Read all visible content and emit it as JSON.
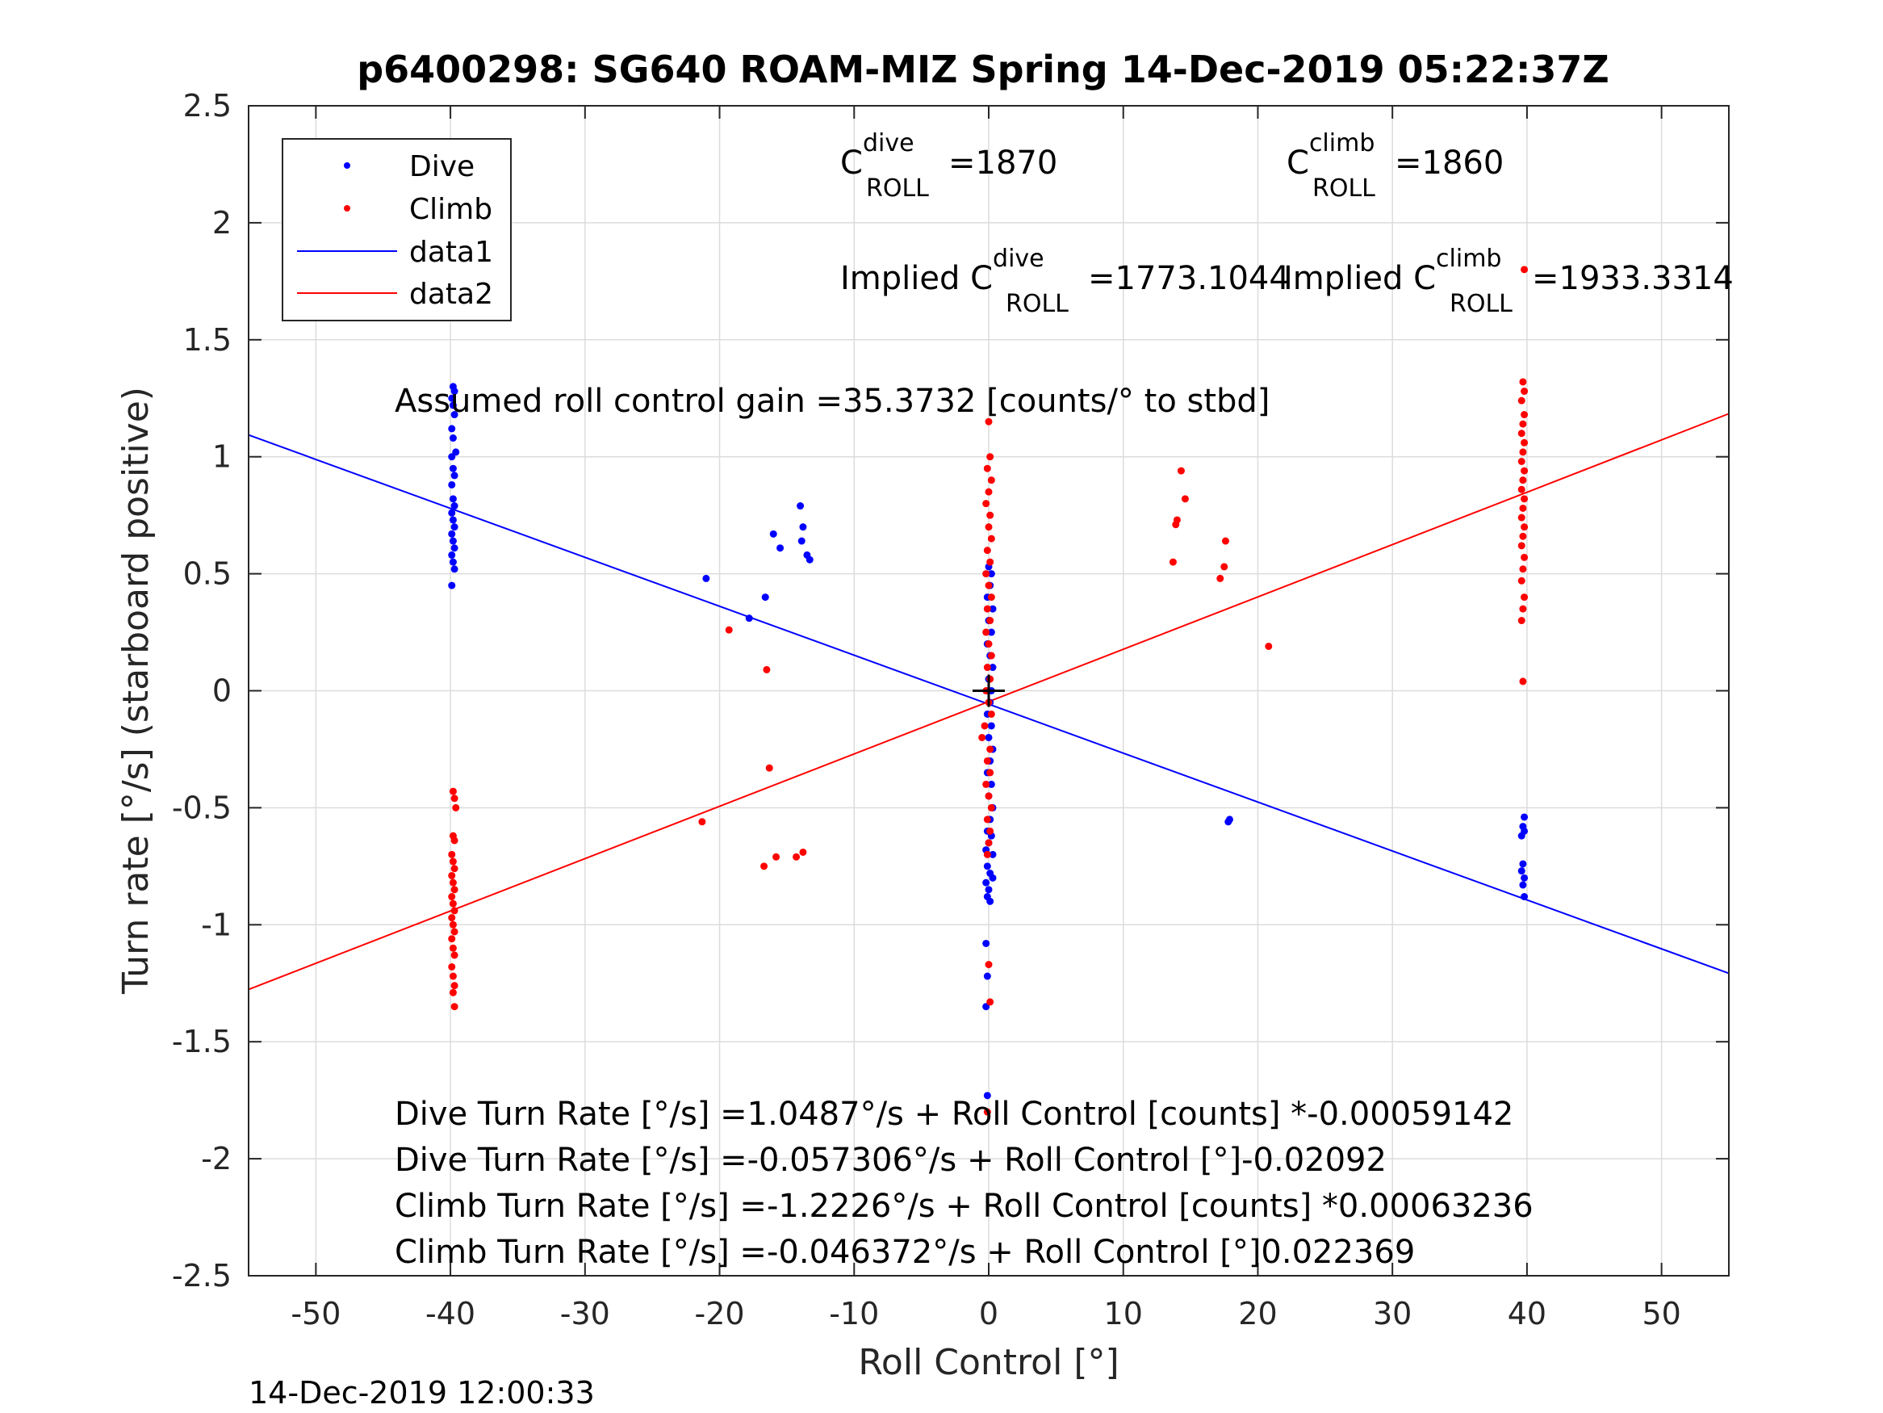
{
  "chart_data": {
    "type": "scatter",
    "title": "p6400298: SG640 ROAM-MIZ Spring 14-Dec-2019 05:22:37Z",
    "xlabel": "Roll Control [°]",
    "ylabel": "Turn rate [°/s] (starboard positive)",
    "xlim": [
      -55,
      55
    ],
    "ylim": [
      -2.5,
      2.5
    ],
    "xticks": [
      -50,
      -40,
      -30,
      -20,
      -10,
      0,
      10,
      20,
      30,
      40,
      50
    ],
    "yticks": [
      -2.5,
      -2,
      -1.5,
      -1,
      -0.5,
      0,
      0.5,
      1,
      1.5,
      2,
      2.5
    ],
    "xtick_labels": [
      "-50",
      "-40",
      "-30",
      "-20",
      "-10",
      "0",
      "10",
      "20",
      "30",
      "40",
      "50"
    ],
    "ytick_labels": [
      "-2.5",
      "-2",
      "-1.5",
      "-1",
      "-0.5",
      "0",
      "0.5",
      "1",
      "1.5",
      "2",
      "2.5"
    ],
    "grid": true,
    "legend_position": "top-left",
    "legend": [
      "Dive",
      "Climb",
      "data1",
      "data2"
    ],
    "colors": {
      "dive": "#0000ff",
      "climb": "#ff0000",
      "marker": "#000000"
    },
    "series": [
      {
        "name": "Dive",
        "style": "points",
        "points": [
          [
            -39.8,
            1.3
          ],
          [
            -39.7,
            1.28
          ],
          [
            -39.9,
            1.25
          ],
          [
            -39.8,
            1.22
          ],
          [
            -39.7,
            1.18
          ],
          [
            -39.9,
            1.12
          ],
          [
            -39.8,
            1.08
          ],
          [
            -39.6,
            1.02
          ],
          [
            -39.9,
            1.0
          ],
          [
            -39.8,
            0.95
          ],
          [
            -39.7,
            0.92
          ],
          [
            -39.9,
            0.88
          ],
          [
            -39.8,
            0.82
          ],
          [
            -39.7,
            0.79
          ],
          [
            -39.9,
            0.76
          ],
          [
            -39.8,
            0.73
          ],
          [
            -39.7,
            0.7
          ],
          [
            -39.9,
            0.67
          ],
          [
            -39.8,
            0.64
          ],
          [
            -39.7,
            0.61
          ],
          [
            -39.9,
            0.58
          ],
          [
            -39.8,
            0.55
          ],
          [
            -39.7,
            0.52
          ],
          [
            -39.9,
            0.45
          ],
          [
            -21.0,
            0.48
          ],
          [
            -17.8,
            0.31
          ],
          [
            -16.6,
            0.4
          ],
          [
            -16.0,
            0.67
          ],
          [
            -15.5,
            0.61
          ],
          [
            -14.0,
            0.79
          ],
          [
            -13.8,
            0.7
          ],
          [
            -13.9,
            0.64
          ],
          [
            -13.5,
            0.58
          ],
          [
            -13.3,
            0.56
          ],
          [
            0.0,
            0.53
          ],
          [
            0.2,
            0.5
          ],
          [
            0.1,
            0.45
          ],
          [
            -0.1,
            0.4
          ],
          [
            0.3,
            0.35
          ],
          [
            0.0,
            0.3
          ],
          [
            0.2,
            0.25
          ],
          [
            -0.1,
            0.2
          ],
          [
            0.1,
            0.15
          ],
          [
            0.3,
            0.1
          ],
          [
            0.0,
            0.05
          ],
          [
            0.2,
            0.0
          ],
          [
            0.1,
            -0.05
          ],
          [
            -0.1,
            -0.1
          ],
          [
            0.2,
            -0.15
          ],
          [
            0.0,
            -0.2
          ],
          [
            0.3,
            -0.25
          ],
          [
            0.1,
            -0.3
          ],
          [
            -0.1,
            -0.35
          ],
          [
            0.2,
            -0.4
          ],
          [
            0.0,
            -0.45
          ],
          [
            0.3,
            -0.5
          ],
          [
            0.1,
            -0.55
          ],
          [
            -0.1,
            -0.6
          ],
          [
            0.2,
            -0.62
          ],
          [
            0.0,
            -0.65
          ],
          [
            -0.2,
            -0.68
          ],
          [
            0.3,
            -0.7
          ],
          [
            -0.1,
            -0.75
          ],
          [
            0.1,
            -0.78
          ],
          [
            0.3,
            -0.8
          ],
          [
            -0.2,
            -0.82
          ],
          [
            0.0,
            -0.85
          ],
          [
            -0.1,
            -0.88
          ],
          [
            0.1,
            -0.9
          ],
          [
            -0.2,
            -1.08
          ],
          [
            -0.1,
            -1.22
          ],
          [
            -0.2,
            -1.35
          ],
          [
            -0.1,
            -1.73
          ],
          [
            17.8,
            -0.56
          ],
          [
            17.9,
            -0.55
          ],
          [
            39.8,
            -0.54
          ],
          [
            39.7,
            -0.58
          ],
          [
            39.6,
            -0.62
          ],
          [
            39.8,
            -0.6
          ],
          [
            39.7,
            -0.74
          ],
          [
            39.6,
            -0.77
          ],
          [
            39.8,
            -0.8
          ],
          [
            39.7,
            -0.83
          ],
          [
            39.8,
            -0.88
          ]
        ]
      },
      {
        "name": "Climb",
        "style": "points",
        "points": [
          [
            -39.8,
            -0.43
          ],
          [
            -39.7,
            -0.46
          ],
          [
            -39.6,
            -0.5
          ],
          [
            -39.8,
            -0.62
          ],
          [
            -39.7,
            -0.64
          ],
          [
            -39.9,
            -0.7
          ],
          [
            -39.8,
            -0.73
          ],
          [
            -39.7,
            -0.76
          ],
          [
            -39.9,
            -0.79
          ],
          [
            -39.8,
            -0.82
          ],
          [
            -39.7,
            -0.85
          ],
          [
            -39.9,
            -0.88
          ],
          [
            -39.8,
            -0.91
          ],
          [
            -39.7,
            -0.94
          ],
          [
            -39.9,
            -0.97
          ],
          [
            -39.8,
            -1.0
          ],
          [
            -39.7,
            -1.03
          ],
          [
            -39.9,
            -1.06
          ],
          [
            -39.8,
            -1.1
          ],
          [
            -39.7,
            -1.13
          ],
          [
            -39.9,
            -1.18
          ],
          [
            -39.8,
            -1.22
          ],
          [
            -39.7,
            -1.26
          ],
          [
            -39.8,
            -1.29
          ],
          [
            -39.7,
            -1.35
          ],
          [
            -21.3,
            -0.56
          ],
          [
            -19.3,
            0.26
          ],
          [
            -16.5,
            0.09
          ],
          [
            -16.3,
            -0.33
          ],
          [
            -16.7,
            -0.75
          ],
          [
            -15.8,
            -0.71
          ],
          [
            -14.3,
            -0.71
          ],
          [
            -13.8,
            -0.69
          ],
          [
            0.0,
            1.15
          ],
          [
            0.1,
            1.0
          ],
          [
            -0.1,
            0.95
          ],
          [
            0.2,
            0.9
          ],
          [
            0.0,
            0.85
          ],
          [
            -0.2,
            0.8
          ],
          [
            0.1,
            0.75
          ],
          [
            0.0,
            0.7
          ],
          [
            0.2,
            0.65
          ],
          [
            -0.1,
            0.6
          ],
          [
            0.1,
            0.55
          ],
          [
            -0.2,
            0.5
          ],
          [
            0.0,
            0.45
          ],
          [
            0.2,
            0.4
          ],
          [
            -0.1,
            0.35
          ],
          [
            0.1,
            0.3
          ],
          [
            -0.2,
            0.25
          ],
          [
            0.0,
            0.2
          ],
          [
            0.2,
            0.15
          ],
          [
            -0.1,
            0.1
          ],
          [
            0.1,
            0.05
          ],
          [
            -0.2,
            0.0
          ],
          [
            0.0,
            -0.05
          ],
          [
            0.2,
            -0.1
          ],
          [
            -0.3,
            -0.15
          ],
          [
            -0.5,
            -0.2
          ],
          [
            0.1,
            -0.25
          ],
          [
            -0.1,
            -0.3
          ],
          [
            0.1,
            -0.35
          ],
          [
            -0.2,
            -0.4
          ],
          [
            0.0,
            -0.45
          ],
          [
            0.2,
            -0.5
          ],
          [
            -0.1,
            -0.55
          ],
          [
            0.1,
            -0.6
          ],
          [
            0.0,
            -0.65
          ],
          [
            -0.1,
            -0.7
          ],
          [
            0.0,
            -1.17
          ],
          [
            0.1,
            -1.33
          ],
          [
            -0.1,
            -1.8
          ],
          [
            13.7,
            0.55
          ],
          [
            13.9,
            0.71
          ],
          [
            14.0,
            0.73
          ],
          [
            14.3,
            0.94
          ],
          [
            14.6,
            0.82
          ],
          [
            17.2,
            0.48
          ],
          [
            17.5,
            0.53
          ],
          [
            17.6,
            0.64
          ],
          [
            20.8,
            0.19
          ],
          [
            39.7,
            1.32
          ],
          [
            39.8,
            1.28
          ],
          [
            39.6,
            1.24
          ],
          [
            39.8,
            1.18
          ],
          [
            39.7,
            1.14
          ],
          [
            39.6,
            1.1
          ],
          [
            39.8,
            1.06
          ],
          [
            39.7,
            1.02
          ],
          [
            39.6,
            0.98
          ],
          [
            39.8,
            0.94
          ],
          [
            39.7,
            0.9
          ],
          [
            39.6,
            0.86
          ],
          [
            39.8,
            0.82
          ],
          [
            39.7,
            0.78
          ],
          [
            39.6,
            0.74
          ],
          [
            39.8,
            0.7
          ],
          [
            39.7,
            0.66
          ],
          [
            39.6,
            0.62
          ],
          [
            39.8,
            0.57
          ],
          [
            39.7,
            0.52
          ],
          [
            39.6,
            0.47
          ],
          [
            39.8,
            0.4
          ],
          [
            39.7,
            0.35
          ],
          [
            39.6,
            0.3
          ],
          [
            39.7,
            0.04
          ],
          [
            39.8,
            1.8
          ]
        ]
      },
      {
        "name": "data1",
        "style": "line",
        "x": [
          -55,
          55
        ],
        "y": [
          1.0931,
          -1.2077
        ]
      },
      {
        "name": "data2",
        "style": "line",
        "x": [
          -55,
          55
        ],
        "y": [
          -1.2767,
          1.184
        ]
      }
    ],
    "marker": {
      "x": 0,
      "y": 0,
      "symbol": "+"
    }
  },
  "annotations": {
    "cdive": {
      "base": "C",
      "sup": "dive",
      "sub": "ROLL",
      "value": "=1870"
    },
    "cclimb": {
      "base": "C",
      "sup": "climb",
      "sub": "ROLL",
      "value": "=1860"
    },
    "implied_dive": {
      "prefix": "Implied C",
      "sup": "dive",
      "sub": "ROLL",
      "value": "=1773.1044"
    },
    "implied_climb": {
      "prefix": "Implied C",
      "sup": "climb",
      "sub": "ROLL",
      "value": "=1933.3314"
    },
    "gain": "Assumed roll control gain =35.3732 [counts/° to stbd]",
    "eq1": "Dive Turn Rate [°/s] =1.0487°/s + Roll Control [counts] *-0.00059142",
    "eq2": "Dive Turn Rate [°/s] =-0.057306°/s + Roll Control [°]-0.02092",
    "eq3": "Climb Turn Rate [°/s] =-1.2226°/s + Roll Control [counts] *0.00063236",
    "eq4": "Climb Turn Rate [°/s] =-0.046372°/s + Roll Control [°]0.022369"
  },
  "footer": {
    "timestamp": "14-Dec-2019 12:00:33"
  }
}
